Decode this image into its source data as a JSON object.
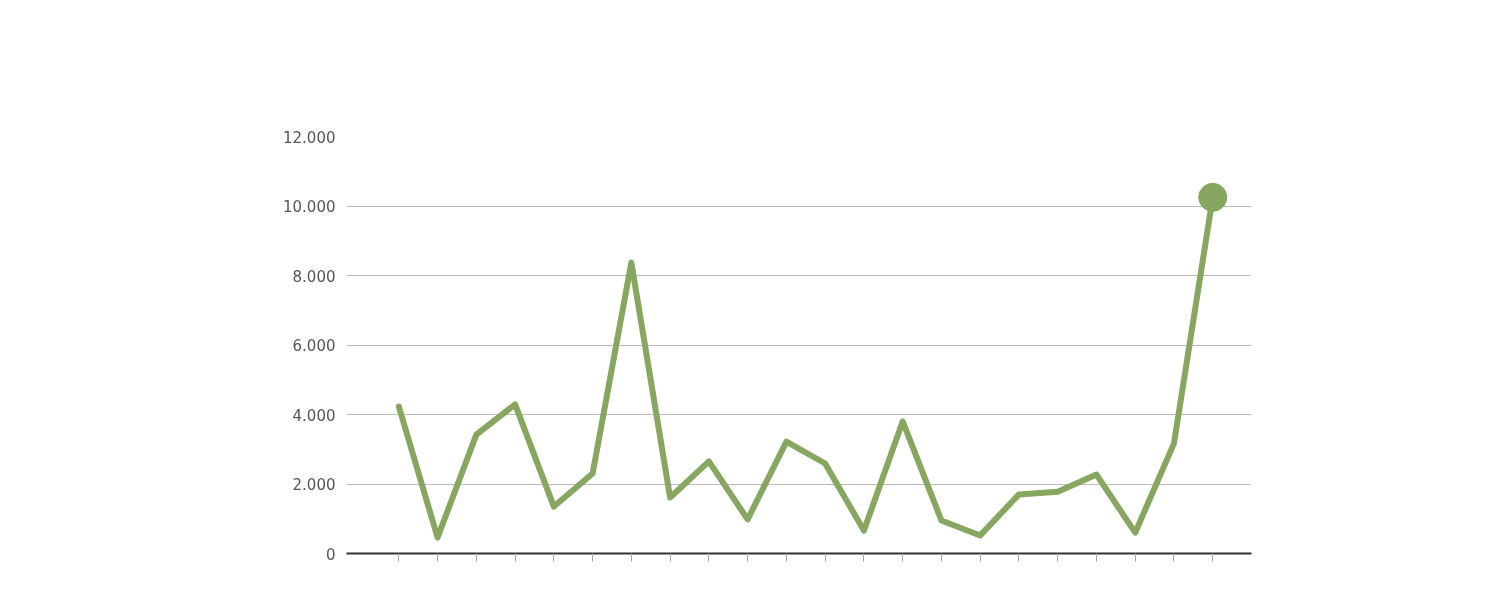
{
  "chart_data": {
    "type": "line",
    "categories": [
      null,
      null,
      null,
      null,
      null,
      null,
      null,
      null,
      null,
      null,
      null,
      null,
      null,
      null,
      null,
      null,
      null,
      null,
      null,
      null,
      null,
      null
    ],
    "series": [
      {
        "color": "#87a660",
        "values": [
          4230,
          460,
          3420,
          4290,
          1350,
          2300,
          8370,
          1610,
          2650,
          980,
          3220,
          2590,
          660,
          3800,
          950,
          520,
          1700,
          1780,
          2270,
          600,
          3170,
          10250
        ]
      },
      {
        "type": "scatter",
        "color": "#87a660",
        "marker": "circle",
        "values": [
          null,
          null,
          null,
          null,
          null,
          null,
          null,
          null,
          null,
          null,
          null,
          null,
          null,
          null,
          null,
          null,
          null,
          null,
          null,
          null,
          null,
          10250
        ]
      }
    ],
    "ylim": [
      0,
      12000
    ],
    "yticks": [
      {
        "value": 0,
        "label": "0"
      },
      {
        "value": 2000,
        "label": "2.000"
      },
      {
        "value": 4000,
        "label": "4.000"
      },
      {
        "value": 6000,
        "label": "6.000"
      },
      {
        "value": 8000,
        "label": "8.000"
      },
      {
        "value": 10000,
        "label": "10.000"
      },
      {
        "value": 12000,
        "label": "12.000"
      }
    ],
    "grid": "y",
    "line_style": "solid"
  }
}
